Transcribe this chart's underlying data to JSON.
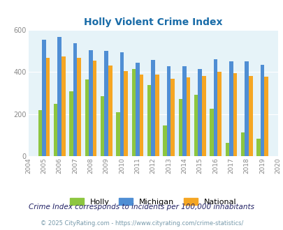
{
  "title": "Holly Violent Crime Index",
  "years": [
    2004,
    2005,
    2006,
    2007,
    2008,
    2009,
    2010,
    2011,
    2012,
    2013,
    2014,
    2015,
    2016,
    2017,
    2018,
    2019,
    2020
  ],
  "holly": [
    null,
    220,
    250,
    310,
    365,
    285,
    208,
    415,
    340,
    148,
    272,
    292,
    225,
    65,
    115,
    85,
    null
  ],
  "michigan": [
    null,
    553,
    568,
    537,
    503,
    500,
    493,
    443,
    458,
    428,
    428,
    413,
    460,
    452,
    450,
    435,
    null
  ],
  "national": [
    null,
    469,
    473,
    467,
    455,
    430,
    403,
    388,
    387,
    367,
    374,
    383,
    400,
    394,
    383,
    379,
    null
  ],
  "holly_color": "#8dc63f",
  "michigan_color": "#4f8ed4",
  "national_color": "#f5a623",
  "bg_color": "#e6f3f8",
  "title_color": "#1a6ca8",
  "ylabel_max": 600,
  "yticks": [
    0,
    200,
    400,
    600
  ],
  "all_years": [
    2004,
    2005,
    2006,
    2007,
    2008,
    2009,
    2010,
    2011,
    2012,
    2013,
    2014,
    2015,
    2016,
    2017,
    2018,
    2019,
    2020
  ],
  "subtitle": "Crime Index corresponds to incidents per 100,000 inhabitants",
  "footer": "© 2025 CityRating.com - https://www.cityrating.com/crime-statistics/",
  "subtitle_color": "#222266",
  "footer_color": "#7799aa"
}
